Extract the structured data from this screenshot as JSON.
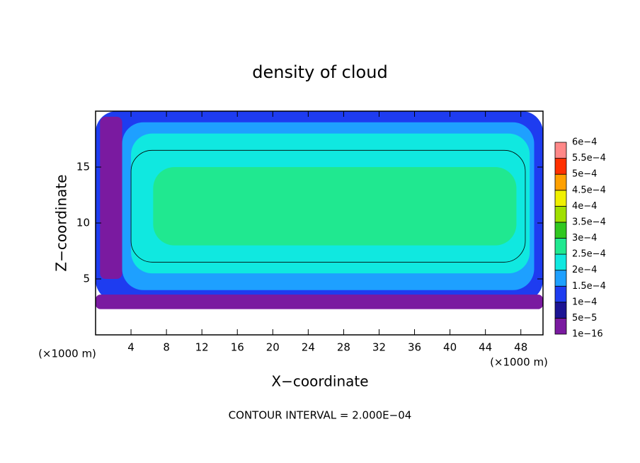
{
  "chart_data": {
    "type": "contour",
    "title": "density of cloud",
    "x_label": "X−coordinate",
    "y_label": "Z−coordinate",
    "x_unit": "(×1000 m)",
    "y_unit": "(×1000 m)",
    "note": "CONTOUR INTERVAL = 2.000E−04",
    "xlim": [
      0,
      50.5
    ],
    "ylim": [
      0,
      20
    ],
    "xticks": [
      4,
      8,
      12,
      16,
      20,
      24,
      28,
      32,
      36,
      40,
      44,
      48
    ],
    "yticks": [
      5,
      10,
      15
    ],
    "regions": [
      {
        "x": [
          0,
          50.5
        ],
        "z": [
          3,
          20
        ],
        "value": 0.00012
      },
      {
        "x": [
          0.5,
          3
        ],
        "z": [
          5,
          19.5
        ],
        "value": 3e-05
      },
      {
        "x": [
          3,
          49.5
        ],
        "z": [
          4,
          19
        ],
        "value": 0.00017
      },
      {
        "x": [
          4,
          49
        ],
        "z": [
          5.5,
          18
        ],
        "value": 0.00022
      },
      {
        "x": [
          4,
          48.5
        ],
        "z": [
          6.5,
          16.5
        ],
        "value": 0.00024,
        "contour": true
      },
      {
        "x": [
          6.5,
          47.5
        ],
        "z": [
          8,
          15
        ],
        "value": 0.00027
      },
      {
        "x": [
          0,
          50.5
        ],
        "z": [
          2.3,
          3.6
        ],
        "value": 3e-05
      }
    ],
    "colorbar": {
      "ticks": [
        {
          "value": 1e-16,
          "label": "1e−16"
        },
        {
          "value": 5e-05,
          "label": "5e−5"
        },
        {
          "value": 0.0001,
          "label": "1e−4"
        },
        {
          "value": 0.00015,
          "label": "1.5e−4"
        },
        {
          "value": 0.0002,
          "label": "2e−4"
        },
        {
          "value": 0.00025,
          "label": "2.5e−4"
        },
        {
          "value": 0.0003,
          "label": "3e−4"
        },
        {
          "value": 0.00035,
          "label": "3.5e−4"
        },
        {
          "value": 0.0004,
          "label": "4e−4"
        },
        {
          "value": 0.00045,
          "label": "4.5e−4"
        },
        {
          "value": 0.0005,
          "label": "5e−4"
        },
        {
          "value": 0.00055,
          "label": "5.5e−4"
        },
        {
          "value": 0.0006,
          "label": "6e−4"
        }
      ],
      "colors": [
        "#7a1aa0",
        "#1c1494",
        "#1e3cf0",
        "#1ea0ff",
        "#10e8e0",
        "#20e890",
        "#30c820",
        "#a0e000",
        "#f0f000",
        "#ffa000",
        "#ff3000",
        "#ff8888"
      ]
    }
  }
}
